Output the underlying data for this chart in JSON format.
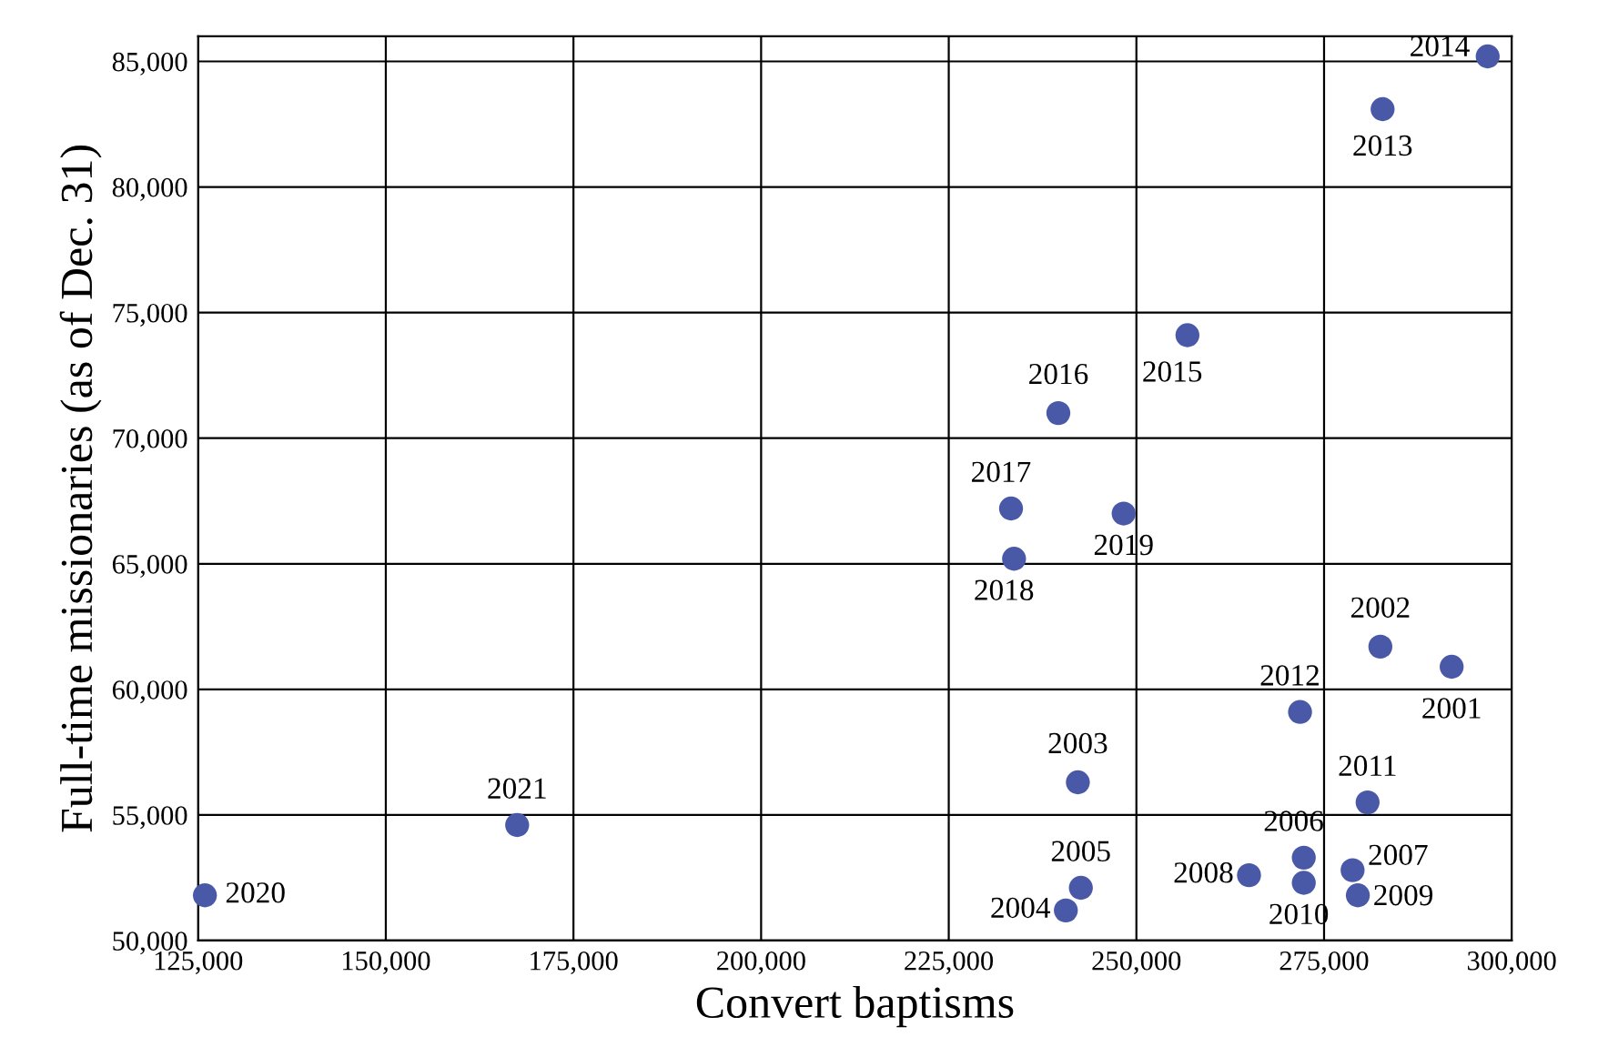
{
  "chart_data": {
    "type": "scatter",
    "xlabel": "Convert baptisms",
    "ylabel": "Full-time missionaries (as of Dec. 31)",
    "x": [
      292000,
      282500,
      242200,
      240600,
      242600,
      272300,
      278800,
      265000,
      279500,
      272300,
      280800,
      271800,
      282800,
      296800,
      256800,
      239600,
      233300,
      233700,
      248300,
      125900,
      167500
    ],
    "series": [
      {
        "color": "#4a59a7",
        "values": [
          60900,
          61700,
          56300,
          51200,
          52100,
          53300,
          52800,
          52600,
          51800,
          52300,
          55500,
          59100,
          83100,
          85200,
          74100,
          71000,
          67200,
          65200,
          67000,
          51800,
          54600
        ]
      }
    ],
    "xlim": [
      125000,
      300000
    ],
    "ylim": [
      50000,
      86000
    ],
    "xticks": [
      {
        "value": 125000,
        "label": "125,000"
      },
      {
        "value": 150000,
        "label": "150,000"
      },
      {
        "value": 175000,
        "label": "175,000"
      },
      {
        "value": 200000,
        "label": "200,000"
      },
      {
        "value": 225000,
        "label": "225,000"
      },
      {
        "value": 250000,
        "label": "250,000"
      },
      {
        "value": 275000,
        "label": "275,000"
      },
      {
        "value": 300000,
        "label": "300,000"
      }
    ],
    "yticks": [
      {
        "value": 50000,
        "label": "50,000"
      },
      {
        "value": 55000,
        "label": "55,000"
      },
      {
        "value": 60000,
        "label": "60,000"
      },
      {
        "value": 65000,
        "label": "65,000"
      },
      {
        "value": 70000,
        "label": "70,000"
      },
      {
        "value": 75000,
        "label": "75,000"
      },
      {
        "value": 80000,
        "label": "80,000"
      },
      {
        "value": 85000,
        "label": "85,000"
      }
    ],
    "grid": true,
    "marker": "circle",
    "annotations": [
      {
        "text": "2001",
        "x": 292000,
        "y": 60900
      },
      {
        "text": "2002",
        "x": 282500,
        "y": 61700
      },
      {
        "text": "2003",
        "x": 242200,
        "y": 56300
      },
      {
        "text": "2004",
        "x": 240600,
        "y": 51200
      },
      {
        "text": "2005",
        "x": 242600,
        "y": 52100
      },
      {
        "text": "2006",
        "x": 272300,
        "y": 53300
      },
      {
        "text": "2007",
        "x": 278800,
        "y": 52800
      },
      {
        "text": "2008",
        "x": 265000,
        "y": 52600
      },
      {
        "text": "2009",
        "x": 279500,
        "y": 51800
      },
      {
        "text": "2010",
        "x": 272300,
        "y": 52300
      },
      {
        "text": "2011",
        "x": 280800,
        "y": 55500
      },
      {
        "text": "2012",
        "x": 271800,
        "y": 59100
      },
      {
        "text": "2013",
        "x": 282800,
        "y": 83100
      },
      {
        "text": "2014",
        "x": 296800,
        "y": 85200
      },
      {
        "text": "2015",
        "x": 256800,
        "y": 74100
      },
      {
        "text": "2016",
        "x": 239600,
        "y": 71000
      },
      {
        "text": "2017",
        "x": 233300,
        "y": 67200
      },
      {
        "text": "2018",
        "x": 233700,
        "y": 65200
      },
      {
        "text": "2019",
        "x": 248300,
        "y": 67000
      },
      {
        "text": "2020",
        "x": 125900,
        "y": 51800
      },
      {
        "text": "2021",
        "x": 167500,
        "y": 54600
      }
    ]
  }
}
